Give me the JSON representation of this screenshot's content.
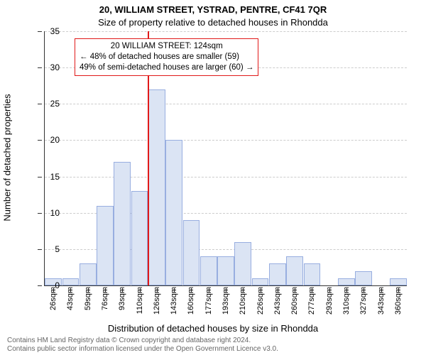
{
  "title_main": "20, WILLIAM STREET, YSTRAD, PENTRE, CF41 7QR",
  "title_sub": "Size of property relative to detached houses in Rhondda",
  "axis": {
    "ylabel": "Number of detached properties",
    "xlabel": "Distribution of detached houses by size in Rhondda",
    "ymin": 0,
    "ymax": 35,
    "ytick_step": 5,
    "yticks": [
      0,
      5,
      10,
      15,
      20,
      25,
      30,
      35
    ],
    "xlabels": [
      "26sqm",
      "43sqm",
      "59sqm",
      "76sqm",
      "93sqm",
      "110sqm",
      "126sqm",
      "143sqm",
      "160sqm",
      "177sqm",
      "193sqm",
      "210sqm",
      "226sqm",
      "243sqm",
      "260sqm",
      "277sqm",
      "293sqm",
      "310sqm",
      "327sqm",
      "343sqm",
      "360sqm"
    ]
  },
  "chart": {
    "type": "histogram",
    "bar_fill": "#dbe4f4",
    "bar_border": "#98aee0",
    "grid_color": "#cccccc",
    "background": "#ffffff",
    "marker_color": "#e11919",
    "marker_at_bar_index": 6,
    "bar_values": [
      1,
      1,
      3,
      11,
      17,
      13,
      27,
      20,
      9,
      4,
      4,
      6,
      1,
      3,
      4,
      3,
      0,
      1,
      2,
      0,
      1
    ],
    "bar_count": 21
  },
  "annotation": {
    "border_color": "#e11919",
    "bg": "#ffffff",
    "lines": [
      "20 WILLIAM STREET: 124sqm",
      "← 48% of detached houses are smaller (59)",
      "49% of semi-detached houses are larger (60) →"
    ]
  },
  "footer": {
    "line1": "Contains HM Land Registry data © Crown copyright and database right 2024.",
    "line2": "Contains public sector information licensed under the Open Government Licence v3.0."
  },
  "style": {
    "title_fontsize": 13,
    "axis_label_fontsize": 13,
    "tick_fontsize": 12,
    "xtick_fontsize": 11,
    "annot_fontsize": 11.5,
    "footer_fontsize": 10,
    "footer_color": "#666666"
  }
}
